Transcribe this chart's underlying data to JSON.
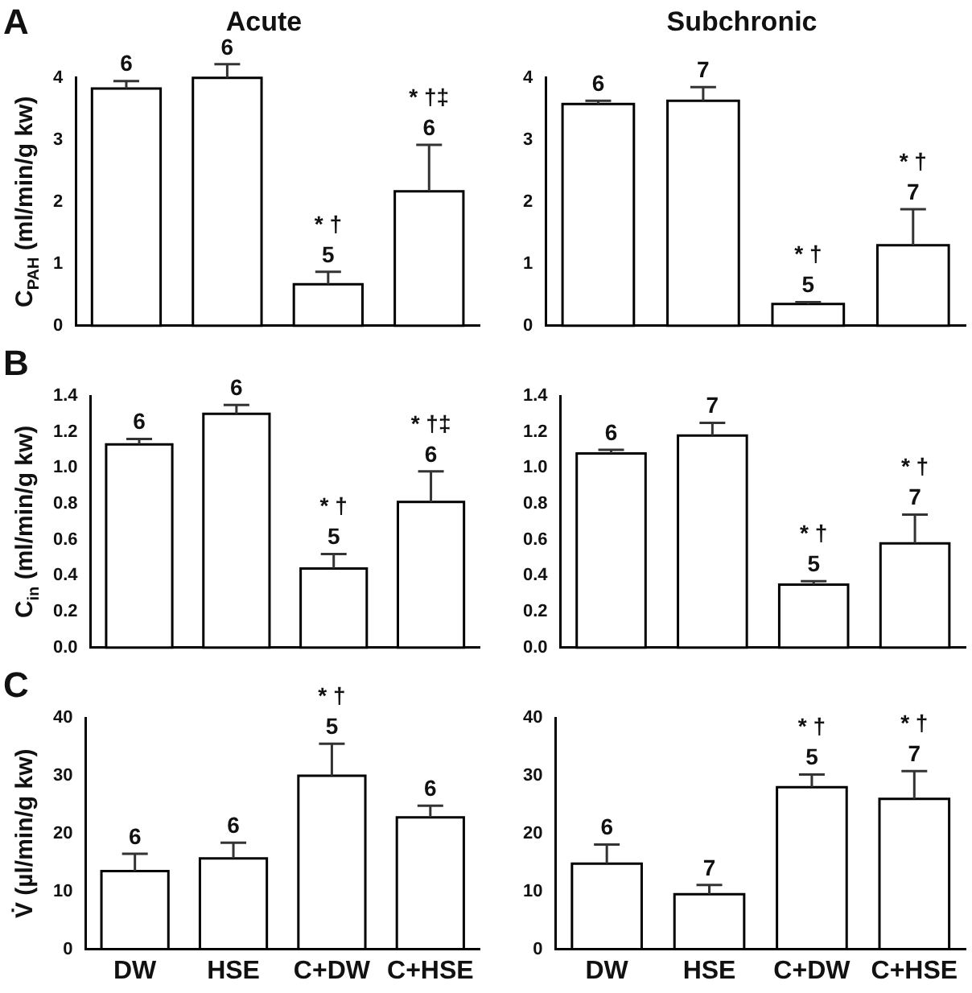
{
  "chart_data": [
    {
      "type": "bar",
      "title": "Acute",
      "ylabel": "C$_{PAH}$ (ml/min/g kw)",
      "categories": [
        "DW",
        "HSE",
        "C+DW",
        "C+HSE"
      ],
      "tick_labels": "y",
      "colors": [
        "#ffffff",
        "#ffffff",
        "#ffffff",
        "#ffffff"
      ],
      "values": [
        3.83,
        4.0,
        0.67,
        2.17
      ],
      "errors": [
        0.12,
        0.22,
        0.2,
        0.75
      ],
      "ylim": [
        0,
        4
      ],
      "yticks": [
        0,
        1,
        2,
        3,
        4
      ],
      "annotations": [
        "A",
        {
          "text": "6",
          "x": "DW",
          "y": 3.95
        },
        {
          "text": "6",
          "x": "HSE",
          "y": 4.22
        },
        {
          "text": "5",
          "x": "C+DW",
          "y": 0.87
        },
        {
          "text": "* †",
          "x": "C+DW",
          "y": 0.87
        },
        {
          "text": "6",
          "x": "C+HSE",
          "y": 2.92
        },
        {
          "text": "* †‡",
          "x": "C+HSE",
          "y": 2.92
        }
      ]
    },
    {
      "type": "bar",
      "title": "Subchronic",
      "categories": [
        "DW",
        "HSE",
        "C+DW",
        "C+HSE"
      ],
      "tick_labels": "y",
      "colors": [
        "#ffffff",
        "#ffffff",
        "#ffffff",
        "#ffffff"
      ],
      "values": [
        3.58,
        3.63,
        0.35,
        1.3
      ],
      "errors": [
        0.05,
        0.22,
        0.03,
        0.58
      ],
      "ylim": [
        0,
        4
      ],
      "yticks": [
        0,
        1,
        2,
        3,
        4
      ],
      "annotations": [
        {
          "text": "6",
          "x": "DW",
          "y": 3.63
        },
        {
          "text": "7",
          "x": "HSE",
          "y": 3.85
        },
        {
          "text": "5",
          "x": "C+DW",
          "y": 0.38
        },
        {
          "text": "* †",
          "x": "C+DW",
          "y": 0.38
        },
        {
          "text": "7",
          "x": "C+HSE",
          "y": 1.88
        },
        {
          "text": "* †",
          "x": "C+HSE",
          "y": 1.88
        }
      ]
    },
    {
      "type": "bar",
      "ylabel": "C$_{in}$ (ml/min/g kw)",
      "categories": [
        "DW",
        "HSE",
        "C+DW",
        "C+HSE"
      ],
      "tick_labels": "y",
      "colors": [
        "#ffffff",
        "#ffffff",
        "#ffffff",
        "#ffffff"
      ],
      "values": [
        1.13,
        1.3,
        0.44,
        0.81
      ],
      "errors": [
        0.03,
        0.05,
        0.08,
        0.17
      ],
      "ylim": [
        0,
        1.4
      ],
      "yticks": [
        {
          "value": 0,
          "label": "0.0"
        },
        {
          "value": 0.2,
          "label": "0.2"
        },
        {
          "value": 0.4,
          "label": "0.4"
        },
        {
          "value": 0.6,
          "label": "0.6"
        },
        {
          "value": 0.8,
          "label": "0.8"
        },
        {
          "value": 1,
          "label": "1.0"
        },
        {
          "value": 1.2,
          "label": "1.2"
        },
        {
          "value": 1.4,
          "label": "1.4"
        }
      ],
      "annotations": [
        "B",
        {
          "text": "6",
          "x": "DW",
          "y": 1.16
        },
        {
          "text": "6",
          "x": "HSE",
          "y": 1.35
        },
        {
          "text": "5",
          "x": "C+DW",
          "y": 0.52
        },
        {
          "text": "* †",
          "x": "C+DW",
          "y": 0.52
        },
        {
          "text": "6",
          "x": "C+HSE",
          "y": 0.98
        },
        {
          "text": "* †‡",
          "x": "C+HSE",
          "y": 0.98
        }
      ]
    },
    {
      "type": "bar",
      "categories": [
        "DW",
        "HSE",
        "C+DW",
        "C+HSE"
      ],
      "tick_labels": "y",
      "colors": [
        "#ffffff",
        "#ffffff",
        "#ffffff",
        "#ffffff"
      ],
      "values": [
        1.08,
        1.18,
        0.35,
        0.58
      ],
      "errors": [
        0.02,
        0.07,
        0.02,
        0.16
      ],
      "ylim": [
        0,
        1.4
      ],
      "yticks": [
        {
          "value": 0,
          "label": "0.0"
        },
        {
          "value": 0.2,
          "label": "0.2"
        },
        {
          "value": 0.4,
          "label": "0.4"
        },
        {
          "value": 0.6,
          "label": "0.6"
        },
        {
          "value": 0.8,
          "label": "0.8"
        },
        {
          "value": 1,
          "label": "1.0"
        },
        {
          "value": 1.2,
          "label": "1.2"
        },
        {
          "value": 1.4,
          "label": "1.4"
        }
      ],
      "annotations": [
        {
          "text": "6",
          "x": "DW",
          "y": 1.1
        },
        {
          "text": "7",
          "x": "HSE",
          "y": 1.25
        },
        {
          "text": "5",
          "x": "C+DW",
          "y": 0.37
        },
        {
          "text": "* †",
          "x": "C+DW",
          "y": 0.37
        },
        {
          "text": "7",
          "x": "C+HSE",
          "y": 0.74
        },
        {
          "text": "* †",
          "x": "C+HSE",
          "y": 0.74
        }
      ]
    },
    {
      "type": "bar",
      "ylabel": "V̇ (µl/min/g kw)",
      "categories": [
        "DW",
        "HSE",
        "C+DW",
        "C+HSE"
      ],
      "colors": [
        "#ffffff",
        "#ffffff",
        "#ffffff",
        "#ffffff"
      ],
      "values": [
        13.5,
        15.7,
        30,
        22.8
      ],
      "errors": [
        3,
        2.7,
        5.5,
        2
      ],
      "ylim": [
        0,
        40
      ],
      "yticks": [
        0,
        10,
        20,
        30,
        40
      ],
      "annotations": [
        "C",
        {
          "text": "6",
          "x": "DW",
          "y": 16.5
        },
        {
          "text": "6",
          "x": "HSE",
          "y": 18.4
        },
        {
          "text": "5",
          "x": "C+DW",
          "y": 35.5
        },
        {
          "text": "* †",
          "x": "C+DW",
          "y": 35.5
        },
        {
          "text": "6",
          "x": "C+HSE",
          "y": 24.8
        }
      ]
    },
    {
      "type": "bar",
      "categories": [
        "DW",
        "HSE",
        "C+DW",
        "C+HSE"
      ],
      "colors": [
        "#ffffff",
        "#ffffff",
        "#ffffff",
        "#ffffff"
      ],
      "values": [
        14.8,
        9.5,
        28,
        26
      ],
      "errors": [
        3.3,
        1.6,
        2.2,
        4.8
      ],
      "ylim": [
        0,
        40
      ],
      "yticks": [
        0,
        10,
        20,
        30,
        40
      ],
      "annotations": [
        {
          "text": "6",
          "x": "DW",
          "y": 18.1
        },
        {
          "text": "7",
          "x": "HSE",
          "y": 11.1
        },
        {
          "text": "5",
          "x": "C+DW",
          "y": 30.2
        },
        {
          "text": "* †",
          "x": "C+DW",
          "y": 30.2
        },
        {
          "text": "7",
          "x": "C+HSE",
          "y": 30.8
        },
        {
          "text": "* †",
          "x": "C+HSE",
          "y": 30.8
        }
      ]
    }
  ]
}
